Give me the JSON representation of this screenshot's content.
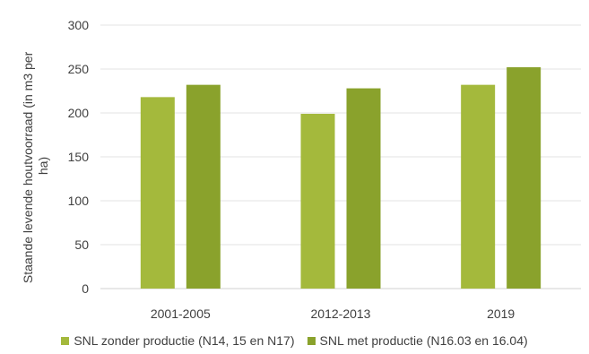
{
  "chart_data": {
    "type": "bar",
    "categories": [
      "2001-2005",
      "2012-2013",
      "2019"
    ],
    "series": [
      {
        "name": "SNL zonder productie (N14, 15 en N17)",
        "values": [
          218,
          199,
          232
        ],
        "color": "#a4b93c"
      },
      {
        "name": "SNL met productie (N16.03 en 16.04)",
        "values": [
          232,
          228,
          252
        ],
        "color": "#8aa22c"
      }
    ],
    "title": "",
    "xlabel": "",
    "ylabel_lines": [
      "Staande levende houtvoorraad (in m3 per",
      "ha)"
    ],
    "ylim": [
      0,
      300
    ],
    "yticks": [
      0,
      50,
      100,
      150,
      200,
      250,
      300
    ],
    "grid": true,
    "legend_position": "bottom"
  }
}
